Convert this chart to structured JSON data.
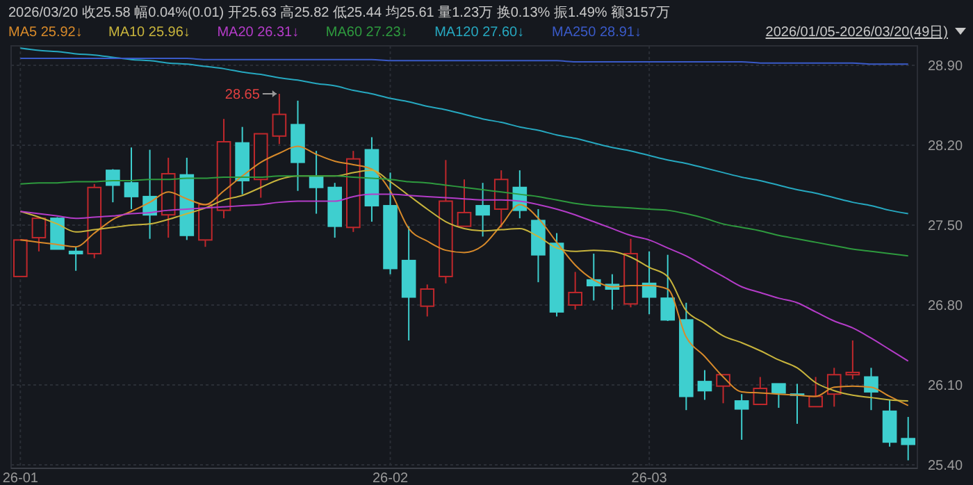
{
  "chart_data": {
    "type": "candlestick",
    "title": "2026/03/20  收25.58  幅0.04%(0.01)  开25.63  高25.82  低25.44  均25.61  量1.23万  换0.13%  振1.49%  额3157万",
    "subtitle": "2026/01/05-2026/03/20(49日)",
    "categories": [
      "26-01",
      null,
      null,
      null,
      null,
      null,
      null,
      null,
      null,
      null,
      null,
      null,
      null,
      null,
      null,
      null,
      null,
      null,
      null,
      null,
      "26-02",
      null,
      null,
      null,
      null,
      null,
      null,
      null,
      null,
      null,
      null,
      null,
      null,
      null,
      "26-03",
      null,
      null,
      null,
      null,
      null,
      null,
      null,
      null,
      null,
      null,
      null,
      null,
      null,
      null
    ],
    "ohlc": [
      [
        27.05,
        27.37,
        27.05,
        27.37
      ],
      [
        27.39,
        27.56,
        27.27,
        27.56
      ],
      [
        27.56,
        27.57,
        27.29,
        27.29
      ],
      [
        27.27,
        27.31,
        27.1,
        27.25
      ],
      [
        27.25,
        27.86,
        27.21,
        27.83
      ],
      [
        27.98,
        27.99,
        27.7,
        27.85
      ],
      [
        27.87,
        28.18,
        27.64,
        27.75
      ],
      [
        27.75,
        28.16,
        27.38,
        27.59
      ],
      [
        27.59,
        28.09,
        27.39,
        27.95
      ],
      [
        27.94,
        28.09,
        27.37,
        27.41
      ],
      [
        27.37,
        27.68,
        27.31,
        27.68
      ],
      [
        27.63,
        28.43,
        27.56,
        28.23
      ],
      [
        28.22,
        28.36,
        27.77,
        27.89
      ],
      [
        27.9,
        28.3,
        27.74,
        28.3
      ],
      [
        28.28,
        28.65,
        28.21,
        28.47
      ],
      [
        28.38,
        28.59,
        27.8,
        28.05
      ],
      [
        27.92,
        28.15,
        27.6,
        27.83
      ],
      [
        27.83,
        27.87,
        27.39,
        27.49
      ],
      [
        27.48,
        28.15,
        27.44,
        28.08
      ],
      [
        28.16,
        28.27,
        27.53,
        27.67
      ],
      [
        27.67,
        27.96,
        27.07,
        27.12
      ],
      [
        27.19,
        27.49,
        26.49,
        26.87
      ],
      [
        26.79,
        26.98,
        26.7,
        26.94
      ],
      [
        27.05,
        28.07,
        26.99,
        27.71
      ],
      [
        27.49,
        27.9,
        27.49,
        27.61
      ],
      [
        27.67,
        27.87,
        27.4,
        27.59
      ],
      [
        27.64,
        27.98,
        27.48,
        27.9
      ],
      [
        27.83,
        27.98,
        27.56,
        27.63
      ],
      [
        27.54,
        27.64,
        27.0,
        27.24
      ],
      [
        27.34,
        27.43,
        26.7,
        26.74
      ],
      [
        26.8,
        27.09,
        26.76,
        26.91
      ],
      [
        27.02,
        27.25,
        26.84,
        26.97
      ],
      [
        26.98,
        27.07,
        26.76,
        26.94
      ],
      [
        26.81,
        27.38,
        26.78,
        27.25
      ],
      [
        26.99,
        27.27,
        26.72,
        26.87
      ],
      [
        26.86,
        27.24,
        26.66,
        26.67
      ],
      [
        26.67,
        26.82,
        25.88,
        26.0
      ],
      [
        26.13,
        26.23,
        25.97,
        26.05
      ],
      [
        26.09,
        26.19,
        25.94,
        26.19
      ],
      [
        25.96,
        26.02,
        25.62,
        25.89
      ],
      [
        25.93,
        26.17,
        25.93,
        26.07
      ],
      [
        26.11,
        26.11,
        25.9,
        26.03
      ],
      [
        26.02,
        26.11,
        25.76,
        26.01
      ],
      [
        25.91,
        26.17,
        25.91,
        26.0
      ],
      [
        26.02,
        26.25,
        25.91,
        26.19
      ],
      [
        26.19,
        26.49,
        26.15,
        26.21
      ],
      [
        26.17,
        26.25,
        25.88,
        26.04
      ],
      [
        25.87,
        25.97,
        25.56,
        25.6
      ],
      [
        25.63,
        25.82,
        25.44,
        25.58
      ]
    ],
    "colors": [
      "#c0282c",
      "#c0282c",
      "#3ecfcf",
      "#3ecfcf",
      "#c0282c",
      "#3ecfcf",
      "#3ecfcf",
      "#3ecfcf",
      "#c0282c",
      "#3ecfcf",
      "#c0282c",
      "#c0282c",
      "#3ecfcf",
      "#c0282c",
      "#c0282c",
      "#3ecfcf",
      "#3ecfcf",
      "#3ecfcf",
      "#c0282c",
      "#3ecfcf",
      "#3ecfcf",
      "#3ecfcf",
      "#c0282c",
      "#c0282c",
      "#c0282c",
      "#3ecfcf",
      "#c0282c",
      "#3ecfcf",
      "#3ecfcf",
      "#3ecfcf",
      "#c0282c",
      "#3ecfcf",
      "#3ecfcf",
      "#c0282c",
      "#3ecfcf",
      "#3ecfcf",
      "#3ecfcf",
      "#3ecfcf",
      "#c0282c",
      "#3ecfcf",
      "#c0282c",
      "#3ecfcf",
      "#3ecfcf",
      "#c0282c",
      "#c0282c",
      "#c0282c",
      "#3ecfcf",
      "#3ecfcf",
      "#3ecfcf"
    ],
    "series": [
      {
        "type": "line",
        "name": "MA5 25.92↓",
        "color": "#d88a2a",
        "values": [
          27.37,
          27.35,
          27.33,
          27.31,
          27.43,
          27.55,
          27.62,
          27.7,
          27.79,
          27.73,
          27.68,
          27.8,
          27.93,
          28.05,
          28.13,
          28.19,
          28.12,
          28.06,
          28.03,
          27.99,
          27.8,
          27.47,
          27.36,
          27.28,
          27.26,
          27.32,
          27.5,
          27.68,
          27.56,
          27.35,
          27.15,
          27.02,
          26.96,
          26.97,
          26.97,
          26.94,
          26.52,
          26.35,
          26.17,
          26.04,
          26.03,
          26.02,
          26.01,
          26.0,
          26.08,
          26.09,
          26.08,
          26.0,
          25.92
        ]
      },
      {
        "type": "line",
        "name": "MA10 25.96↓",
        "color": "#c8b43c",
        "values": [
          27.62,
          27.57,
          27.51,
          27.44,
          27.46,
          27.48,
          27.5,
          27.51,
          27.55,
          27.6,
          27.65,
          27.72,
          27.76,
          27.83,
          27.9,
          27.93,
          27.93,
          27.93,
          27.96,
          27.98,
          27.88,
          27.76,
          27.64,
          27.53,
          27.47,
          27.45,
          27.46,
          27.47,
          27.4,
          27.3,
          27.27,
          27.28,
          27.27,
          27.22,
          27.13,
          27.05,
          26.75,
          26.64,
          26.53,
          26.47,
          26.4,
          26.32,
          26.25,
          26.12,
          26.05,
          26.01,
          25.99,
          25.97,
          25.96
        ]
      },
      {
        "type": "line",
        "name": "MA20 26.31↓",
        "color": "#b43cc8",
        "values": [
          27.62,
          27.6,
          27.58,
          27.56,
          27.57,
          27.58,
          27.6,
          27.61,
          27.63,
          27.64,
          27.65,
          27.66,
          27.67,
          27.68,
          27.7,
          27.71,
          27.71,
          27.71,
          27.75,
          27.77,
          27.77,
          27.76,
          27.75,
          27.74,
          27.73,
          27.72,
          27.72,
          27.71,
          27.68,
          27.64,
          27.59,
          27.53,
          27.47,
          27.41,
          27.37,
          27.3,
          27.23,
          27.14,
          27.05,
          26.96,
          26.91,
          26.86,
          26.82,
          26.74,
          26.66,
          26.6,
          26.51,
          26.41,
          26.31
        ]
      },
      {
        "type": "line",
        "name": "MA60 27.23↓",
        "color": "#2e9a3e",
        "values": [
          27.86,
          27.87,
          27.87,
          27.88,
          27.88,
          27.89,
          27.89,
          27.9,
          27.9,
          27.91,
          27.91,
          27.92,
          27.92,
          27.92,
          27.93,
          27.93,
          27.93,
          27.93,
          27.92,
          27.91,
          27.9,
          27.88,
          27.87,
          27.85,
          27.83,
          27.81,
          27.79,
          27.77,
          27.75,
          27.72,
          27.69,
          27.67,
          27.66,
          27.65,
          27.64,
          27.63,
          27.6,
          27.56,
          27.51,
          27.48,
          27.45,
          27.41,
          27.38,
          27.35,
          27.32,
          27.29,
          27.27,
          27.25,
          27.23
        ]
      },
      {
        "type": "line",
        "name": "MA120 27.60↓",
        "color": "#26a8c0",
        "values": [
          29.05,
          29.03,
          29.02,
          29.0,
          28.99,
          28.97,
          28.95,
          28.94,
          28.92,
          28.91,
          28.89,
          28.87,
          28.84,
          28.82,
          28.79,
          28.77,
          28.74,
          28.72,
          28.68,
          28.65,
          28.61,
          28.58,
          28.54,
          28.51,
          28.47,
          28.43,
          28.4,
          28.36,
          28.33,
          28.29,
          28.26,
          28.22,
          28.18,
          28.15,
          28.11,
          28.07,
          28.04,
          28.0,
          27.96,
          27.92,
          27.89,
          27.85,
          27.81,
          27.78,
          27.74,
          27.7,
          27.67,
          27.63,
          27.6
        ]
      },
      {
        "type": "line",
        "name": "MA250 28.91↓",
        "color": "#3a5ac8",
        "values": [
          28.96,
          28.96,
          28.96,
          28.96,
          28.96,
          28.96,
          28.96,
          28.96,
          28.96,
          28.96,
          28.95,
          28.95,
          28.95,
          28.95,
          28.95,
          28.95,
          28.95,
          28.95,
          28.95,
          28.95,
          28.94,
          28.94,
          28.94,
          28.94,
          28.94,
          28.94,
          28.94,
          28.94,
          28.94,
          28.94,
          28.93,
          28.93,
          28.93,
          28.93,
          28.93,
          28.93,
          28.93,
          28.93,
          28.93,
          28.93,
          28.92,
          28.92,
          28.92,
          28.92,
          28.92,
          28.92,
          28.91,
          28.91,
          28.91
        ]
      }
    ],
    "annotations": [
      "28.65"
    ],
    "ylim": [
      25.37,
      29.07
    ],
    "yticks": [
      {
        "value": 28.9,
        "label": "28.90"
      },
      {
        "value": 28.2,
        "label": "28.20"
      },
      {
        "value": 27.5,
        "label": "27.50"
      },
      {
        "value": 26.8,
        "label": "26.80"
      },
      {
        "value": 26.1,
        "label": "26.10"
      },
      {
        "value": 25.4,
        "label": "25.40"
      }
    ],
    "grid": true,
    "legend": "top left",
    "marker": "none",
    "line_style": "solid"
  }
}
